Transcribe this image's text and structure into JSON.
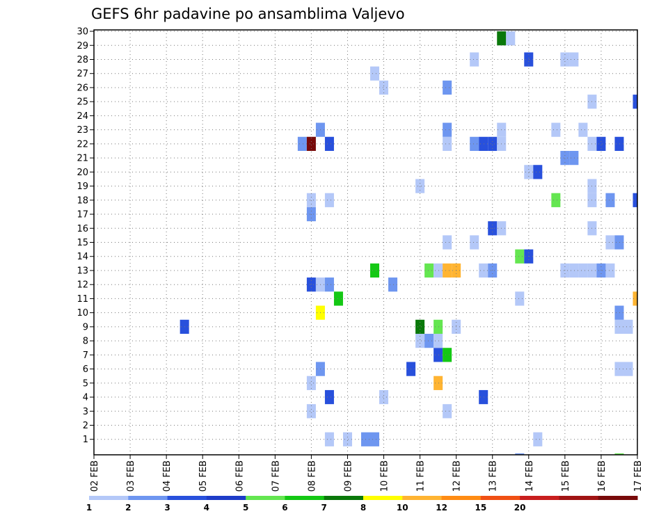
{
  "chart_data": {
    "type": "heatmap",
    "title": "GEFS 6hr padavine po ansamblima Valjevo",
    "x_start_day": 2,
    "x_tick_labels": [
      "02 FEB",
      "03 FEB",
      "04 FEB",
      "05 FEB",
      "06 FEB",
      "07 FEB",
      "08 FEB",
      "09 FEB",
      "10 FEB",
      "11 FEB",
      "12 FEB",
      "13 FEB",
      "14 FEB",
      "15 FEB",
      "16 FEB",
      "17 FEB"
    ],
    "y_tick_labels": [
      "1",
      "2",
      "3",
      "4",
      "5",
      "6",
      "7",
      "8",
      "9",
      "10",
      "11",
      "12",
      "13",
      "14",
      "15",
      "16",
      "17",
      "18",
      "19",
      "20",
      "21",
      "22",
      "23",
      "24",
      "25",
      "26",
      "27",
      "28",
      "29",
      "30"
    ],
    "ylim": [
      0,
      30
    ],
    "grid": true,
    "colorbar": {
      "colors": [
        "#b4c8f8",
        "#6e96f0",
        "#2850dc",
        "#1e3cc8",
        "#64e650",
        "#14c814",
        "#0a780a",
        "#ffff00",
        "#ffb432",
        "#ff8c14",
        "#f05014",
        "#c81e1e",
        "#a01414",
        "#780a0a"
      ],
      "labels": [
        "1",
        "2",
        "3",
        "4",
        "5",
        "6",
        "7",
        "8",
        "10",
        "12",
        "15",
        "20"
      ]
    },
    "cells": [
      {
        "d": "9 12",
        "m": 1,
        "c": 2
      },
      {
        "d": "9 18",
        "m": 1,
        "c": 2
      },
      {
        "d": "8 12",
        "m": 1,
        "c": 1
      },
      {
        "d": "9 00",
        "m": 1,
        "c": 1
      },
      {
        "d": "14 06",
        "m": 1,
        "c": 1
      },
      {
        "d": "8 00",
        "m": 3,
        "c": 1
      },
      {
        "d": "11 18",
        "m": 3,
        "c": 1
      },
      {
        "d": "8 12",
        "m": 4,
        "c": 3
      },
      {
        "d": "10 00",
        "m": 4,
        "c": 1
      },
      {
        "d": "12 18",
        "m": 4,
        "c": 3
      },
      {
        "d": "8 00",
        "m": 5,
        "c": 1
      },
      {
        "d": "11 12",
        "m": 5,
        "c": 9
      },
      {
        "d": "8 06",
        "m": 6,
        "c": 2
      },
      {
        "d": "10 18",
        "m": 6,
        "c": 3
      },
      {
        "d": "16 12",
        "m": 6,
        "c": 1
      },
      {
        "d": "16 18",
        "m": 6,
        "c": 1
      },
      {
        "d": "11 12",
        "m": 7,
        "c": 3
      },
      {
        "d": "11 18",
        "m": 7,
        "c": 6
      },
      {
        "d": "11 00",
        "m": 8,
        "c": 1
      },
      {
        "d": "11 06",
        "m": 8,
        "c": 2
      },
      {
        "d": "11 12",
        "m": 8,
        "c": 1
      },
      {
        "d": "4 12",
        "m": 9,
        "c": 3
      },
      {
        "d": "11 00",
        "m": 9,
        "c": 7
      },
      {
        "d": "11 12",
        "m": 9,
        "c": 5
      },
      {
        "d": "12 00",
        "m": 9,
        "c": 1
      },
      {
        "d": "16 12",
        "m": 9,
        "c": 1
      },
      {
        "d": "16 18",
        "m": 9,
        "c": 1
      },
      {
        "d": "8 06",
        "m": 10,
        "c": 8
      },
      {
        "d": "16 12",
        "m": 10,
        "c": 2
      },
      {
        "d": "8 18",
        "m": 11,
        "c": 6
      },
      {
        "d": "13 18",
        "m": 11,
        "c": 1
      },
      {
        "d": "17 00",
        "m": 11,
        "c": 9
      },
      {
        "d": "8 00",
        "m": 12,
        "c": 3
      },
      {
        "d": "8 06",
        "m": 12,
        "c": 1
      },
      {
        "d": "8 12",
        "m": 12,
        "c": 2
      },
      {
        "d": "10 06",
        "m": 12,
        "c": 2
      },
      {
        "d": "9 18",
        "m": 13,
        "c": 6
      },
      {
        "d": "11 06",
        "m": 13,
        "c": 5
      },
      {
        "d": "11 12",
        "m": 13,
        "c": 1
      },
      {
        "d": "11 18",
        "m": 13,
        "c": 9
      },
      {
        "d": "12 00",
        "m": 13,
        "c": 9
      },
      {
        "d": "12 18",
        "m": 13,
        "c": 1
      },
      {
        "d": "13 00",
        "m": 13,
        "c": 2
      },
      {
        "d": "15 00",
        "m": 13,
        "c": 1
      },
      {
        "d": "15 06",
        "m": 13,
        "c": 1
      },
      {
        "d": "15 12",
        "m": 13,
        "c": 1
      },
      {
        "d": "15 18",
        "m": 13,
        "c": 1
      },
      {
        "d": "16 00",
        "m": 13,
        "c": 2
      },
      {
        "d": "16 06",
        "m": 13,
        "c": 1
      },
      {
        "d": "13 18",
        "m": 14,
        "c": 5
      },
      {
        "d": "14 00",
        "m": 14,
        "c": 3
      },
      {
        "d": "11 18",
        "m": 15,
        "c": 1
      },
      {
        "d": "12 12",
        "m": 15,
        "c": 1
      },
      {
        "d": "16 06",
        "m": 15,
        "c": 1
      },
      {
        "d": "16 12",
        "m": 15,
        "c": 2
      },
      {
        "d": "13 00",
        "m": 16,
        "c": 3
      },
      {
        "d": "13 06",
        "m": 16,
        "c": 1
      },
      {
        "d": "15 18",
        "m": 16,
        "c": 1
      },
      {
        "d": "8 00",
        "m": 17,
        "c": 2
      },
      {
        "d": "8 00",
        "m": 18,
        "c": 1
      },
      {
        "d": "8 12",
        "m": 18,
        "c": 1
      },
      {
        "d": "14 18",
        "m": 18,
        "c": 5
      },
      {
        "d": "15 18",
        "m": 18,
        "c": 1
      },
      {
        "d": "16 06",
        "m": 18,
        "c": 2
      },
      {
        "d": "17 00",
        "m": 18,
        "c": 3
      },
      {
        "d": "11 00",
        "m": 19,
        "c": 1
      },
      {
        "d": "15 18",
        "m": 19,
        "c": 1
      },
      {
        "d": "14 00",
        "m": 20,
        "c": 1
      },
      {
        "d": "14 06",
        "m": 20,
        "c": 3
      },
      {
        "d": "15 00",
        "m": 21,
        "c": 2
      },
      {
        "d": "15 06",
        "m": 21,
        "c": 2
      },
      {
        "d": "7 18",
        "m": 22,
        "c": 2
      },
      {
        "d": "8 00",
        "m": 22,
        "c": 14
      },
      {
        "d": "8 12",
        "m": 22,
        "c": 3
      },
      {
        "d": "11 18",
        "m": 22,
        "c": 1
      },
      {
        "d": "12 12",
        "m": 22,
        "c": 2
      },
      {
        "d": "12 18",
        "m": 22,
        "c": 3
      },
      {
        "d": "13 00",
        "m": 22,
        "c": 3
      },
      {
        "d": "13 06",
        "m": 22,
        "c": 1
      },
      {
        "d": "15 18",
        "m": 22,
        "c": 1
      },
      {
        "d": "16 00",
        "m": 22,
        "c": 3
      },
      {
        "d": "16 12",
        "m": 22,
        "c": 3
      },
      {
        "d": "8 06",
        "m": 23,
        "c": 2
      },
      {
        "d": "11 18",
        "m": 23,
        "c": 2
      },
      {
        "d": "13 06",
        "m": 23,
        "c": 1
      },
      {
        "d": "14 18",
        "m": 23,
        "c": 1
      },
      {
        "d": "15 12",
        "m": 23,
        "c": 1
      },
      {
        "d": "15 18",
        "m": 25,
        "c": 1
      },
      {
        "d": "17 00",
        "m": 25,
        "c": 3
      },
      {
        "d": "10 00",
        "m": 26,
        "c": 1
      },
      {
        "d": "11 18",
        "m": 26,
        "c": 2
      },
      {
        "d": "9 18",
        "m": 27,
        "c": 1
      },
      {
        "d": "12 12",
        "m": 28,
        "c": 1
      },
      {
        "d": "14 00",
        "m": 28,
        "c": 3
      },
      {
        "d": "15 00",
        "m": 28,
        "c": 1
      },
      {
        "d": "15 06",
        "m": 28,
        "c": 1
      },
      {
        "d": "13 06",
        "m": 29.5,
        "c": 7
      },
      {
        "d": "13 12",
        "m": 29.5,
        "c": 1
      },
      {
        "d": "13 18",
        "m": -0.5,
        "c": 2
      },
      {
        "d": "16 12",
        "m": -0.5,
        "c": 5
      }
    ]
  }
}
